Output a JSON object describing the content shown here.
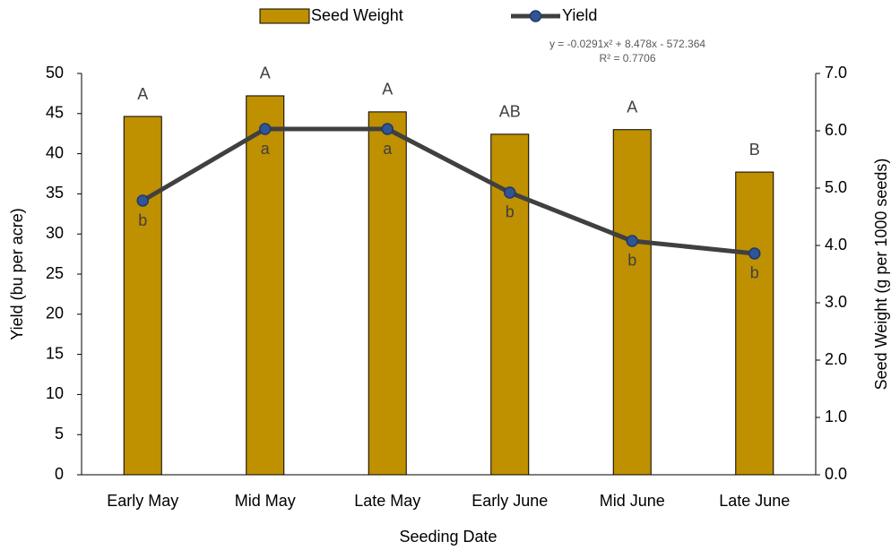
{
  "chart_data": {
    "type": "combo",
    "categories": [
      "Early May",
      "Mid May",
      "Late May",
      "Early June",
      "Mid June",
      "Late June"
    ],
    "series": [
      {
        "name": "Seed Weight",
        "type": "bar",
        "axis": "y2",
        "color": "#bf9000",
        "values": [
          6.25,
          6.61,
          6.33,
          5.94,
          6.02,
          5.28
        ],
        "letters": [
          "A",
          "A",
          "A",
          "AB",
          "A",
          "B"
        ]
      },
      {
        "name": "Yield",
        "type": "line",
        "axis": "y",
        "color": "#404040",
        "marker_color": "#2f5597",
        "values": [
          34.15,
          43.08,
          43.08,
          35.16,
          29.13,
          27.57
        ],
        "letters": [
          "b",
          "a",
          "a",
          "b",
          "b",
          "b"
        ]
      }
    ],
    "annotations": [
      "y = -0.0291x² + 8.478x - 572.364",
      "R² = 0.7706"
    ],
    "xlabel": "Seeding Date",
    "ylabel": "Yield (bu per acre)",
    "y2label": "Seed Weight (g per 1000 seeds)",
    "ylim": [
      0,
      50
    ],
    "yticks": [
      0,
      5,
      10,
      15,
      20,
      25,
      30,
      35,
      40,
      45,
      50
    ],
    "y2lim": [
      0,
      7
    ],
    "y2ticks": [
      {
        "value": 0,
        "label": "0.0"
      },
      {
        "value": 1,
        "label": "1.0"
      },
      {
        "value": 2,
        "label": "2.0"
      },
      {
        "value": 3,
        "label": "3.0"
      },
      {
        "value": 4,
        "label": "4.0"
      },
      {
        "value": 5,
        "label": "5.0"
      },
      {
        "value": 6,
        "label": "6.0"
      },
      {
        "value": 7,
        "label": "7.0"
      }
    ],
    "grid": false,
    "legend": "top"
  }
}
